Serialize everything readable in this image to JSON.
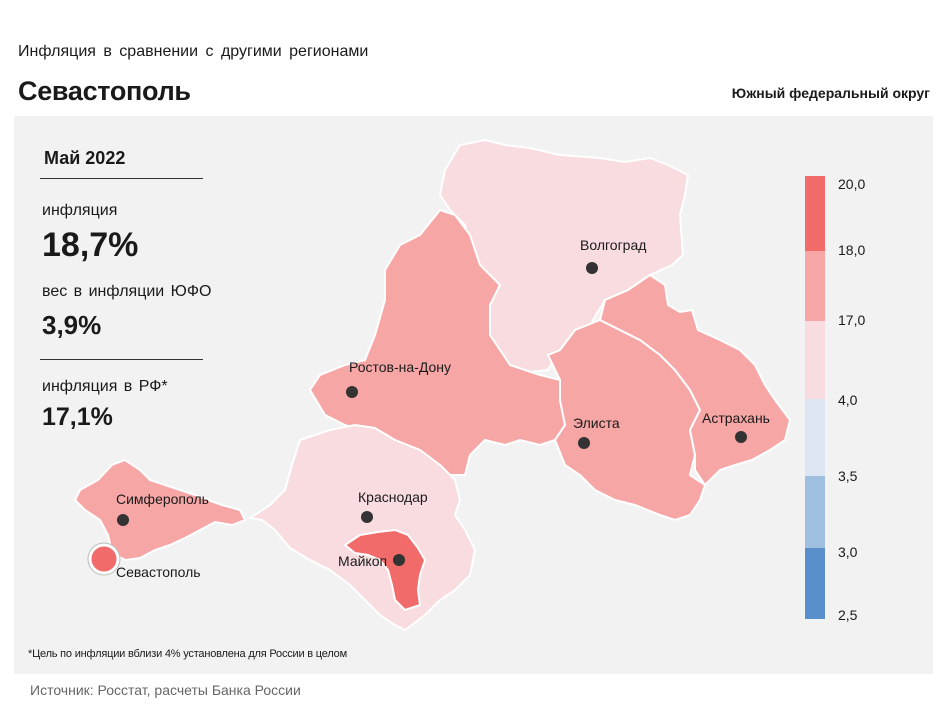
{
  "header": {
    "subtitle": "Инфляция  в сравнении  с другими  регионами",
    "title": "Севастополь",
    "district": "Южный федеральный округ"
  },
  "stats": {
    "month": "Май 2022",
    "inflation_label": "инфляция",
    "inflation_value": "18,7%",
    "weight_label": "вес в инфляции  ЮФО",
    "weight_value": "3,9%",
    "rf_label": "инфляция  в РФ*",
    "rf_value": "17,1%"
  },
  "cities": {
    "volgograd": "Волгоград",
    "rostov": "Ростов-на-Дону",
    "elista": "Элиста",
    "astrakhan": "Астрахань",
    "simferopol": "Симферополь",
    "krasnodar": "Краснодар",
    "maikop": "Майкоп",
    "sevastopol": "Севастополь"
  },
  "legend": {
    "labels": [
      "20,0",
      "18,0",
      "17,0",
      "4,0",
      "3,5",
      "3,0",
      "2,5"
    ],
    "colors": [
      "#f26b6b",
      "#f7a6a6",
      "#f9dcdf",
      "#dde6f4",
      "#9fbfe0",
      "#5b8fcc"
    ]
  },
  "colors": {
    "high": "#f26b6b",
    "mid": "#f7a6a6",
    "low": "#f9dcdf",
    "panel": "#f2f2f2"
  },
  "footer": {
    "note": "*Цель по инфляции вблизи 4% установлена для России в целом",
    "source": "Источник: Росстат, расчеты Банка России"
  }
}
